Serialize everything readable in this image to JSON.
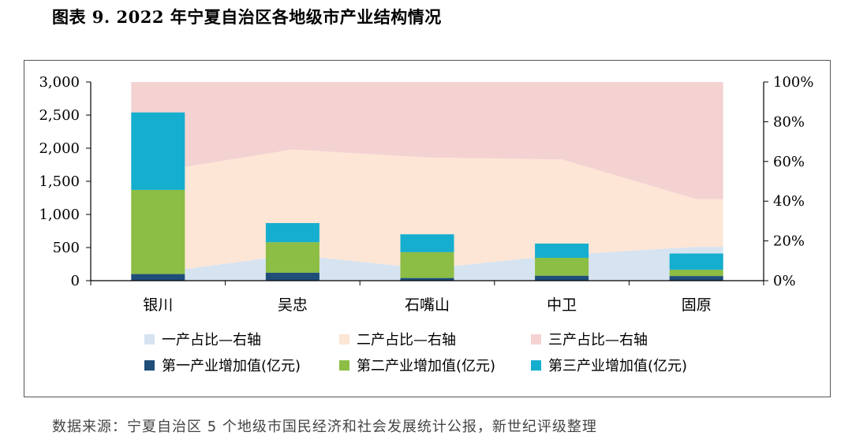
{
  "title": "图表 9. 2022 年宁夏自治区各地级市产业结构情况",
  "source": "数据来源：宁夏自治区 5 个地级市国民经济和社会发展统计公报，新世纪评级整理",
  "chart_data": {
    "type": "bar",
    "categories": [
      "银川",
      "吴忠",
      "石嘴山",
      "中卫",
      "固原"
    ],
    "left_axis": {
      "ylim": [
        0,
        3000
      ],
      "ticks": [
        "0",
        "500",
        "1,000",
        "1,500",
        "2,000",
        "2,500",
        "3,000"
      ],
      "tick_values": [
        0,
        500,
        1000,
        1500,
        2000,
        2500,
        3000
      ]
    },
    "right_axis": {
      "ylim": [
        0,
        100
      ],
      "ticks": [
        "0%",
        "20%",
        "40%",
        "60%",
        "80%",
        "100%"
      ],
      "tick_values": [
        0,
        20,
        40,
        60,
        80,
        100
      ]
    },
    "bar_series": [
      {
        "name": "第一产业增加值(亿元)",
        "color": "#1f4e79",
        "values": [
          100,
          120,
          40,
          75,
          70
        ]
      },
      {
        "name": "第二产业增加值(亿元)",
        "color": "#8cbd44",
        "values": [
          1270,
          460,
          390,
          270,
          95
        ]
      },
      {
        "name": "第三产业增加值(亿元)",
        "color": "#16aece",
        "values": [
          1170,
          290,
          270,
          215,
          245
        ]
      }
    ],
    "area_series": [
      {
        "name": "一产占比—右轴",
        "color": "#d6e3f1",
        "values": [
          4,
          13,
          6,
          13,
          17
        ]
      },
      {
        "name": "二产占比—右轴",
        "color": "#fde6d6",
        "values": [
          51,
          53,
          56,
          48,
          24
        ]
      },
      {
        "name": "三产占比—右轴",
        "color": "#f4d2d2",
        "values": [
          45,
          34,
          38,
          39,
          59
        ]
      }
    ],
    "legend": [
      [
        "一产占比—右轴",
        "二产占比—右轴",
        "三产占比—右轴"
      ],
      [
        "第一产业增加值(亿元)",
        "第二产业增加值(亿元)",
        "第三产业增加值(亿元)"
      ]
    ],
    "legend_position": "bottom"
  }
}
